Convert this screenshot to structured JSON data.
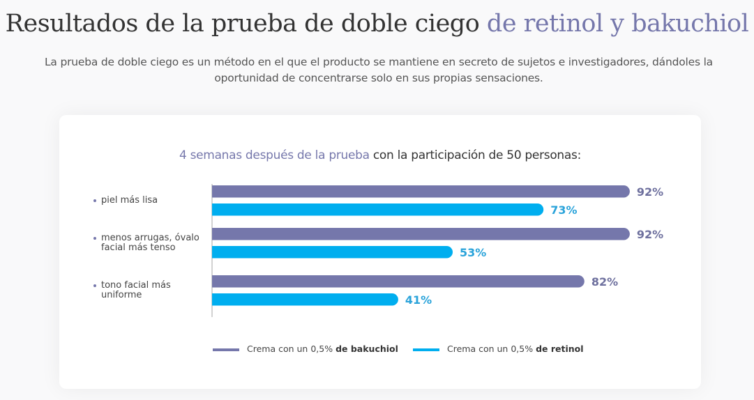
{
  "header": {
    "title_main": "Resultados de la prueba de doble ciego",
    "title_accent": "de retinol y bakuchiol",
    "subtitle": "La prueba de doble ciego es un método en el que el producto se mantiene en secreto de sujetos e investigadores, dándoles la oportunidad de concentrarse solo en sus propias sensaciones."
  },
  "chart_data": {
    "type": "bar",
    "orientation": "horizontal",
    "title_accent": "4 semanas después de la prueba",
    "title_rest": "con la participación de 50 personas:",
    "categories": [
      "piel más lisa",
      "menos arrugas, óvalo facial más tenso",
      "tono facial más uniforme"
    ],
    "category_lines": [
      [
        "piel más lisa"
      ],
      [
        "menos arrugas, óvalo",
        "facial más tenso"
      ],
      [
        "tono facial más",
        "uniforme"
      ]
    ],
    "series": [
      {
        "name": "Crema con un 0,5% de bakuchiol",
        "name_plain": "Crema con un 0,5%",
        "name_bold": "de bakuchiol",
        "color": "#7577ab",
        "label_color": "#6e709e",
        "values": [
          92,
          92,
          82
        ]
      },
      {
        "name": "Crema con un 0,5% de retinol",
        "name_plain": "Crema con un 0,5%",
        "name_bold": "de retinol",
        "color": "#00aeef",
        "label_color": "#2aa3da",
        "values": [
          73,
          53,
          41
        ]
      }
    ],
    "value_suffix": "%",
    "xlim": [
      0,
      100
    ],
    "grid": false,
    "legend_position": "bottom"
  }
}
